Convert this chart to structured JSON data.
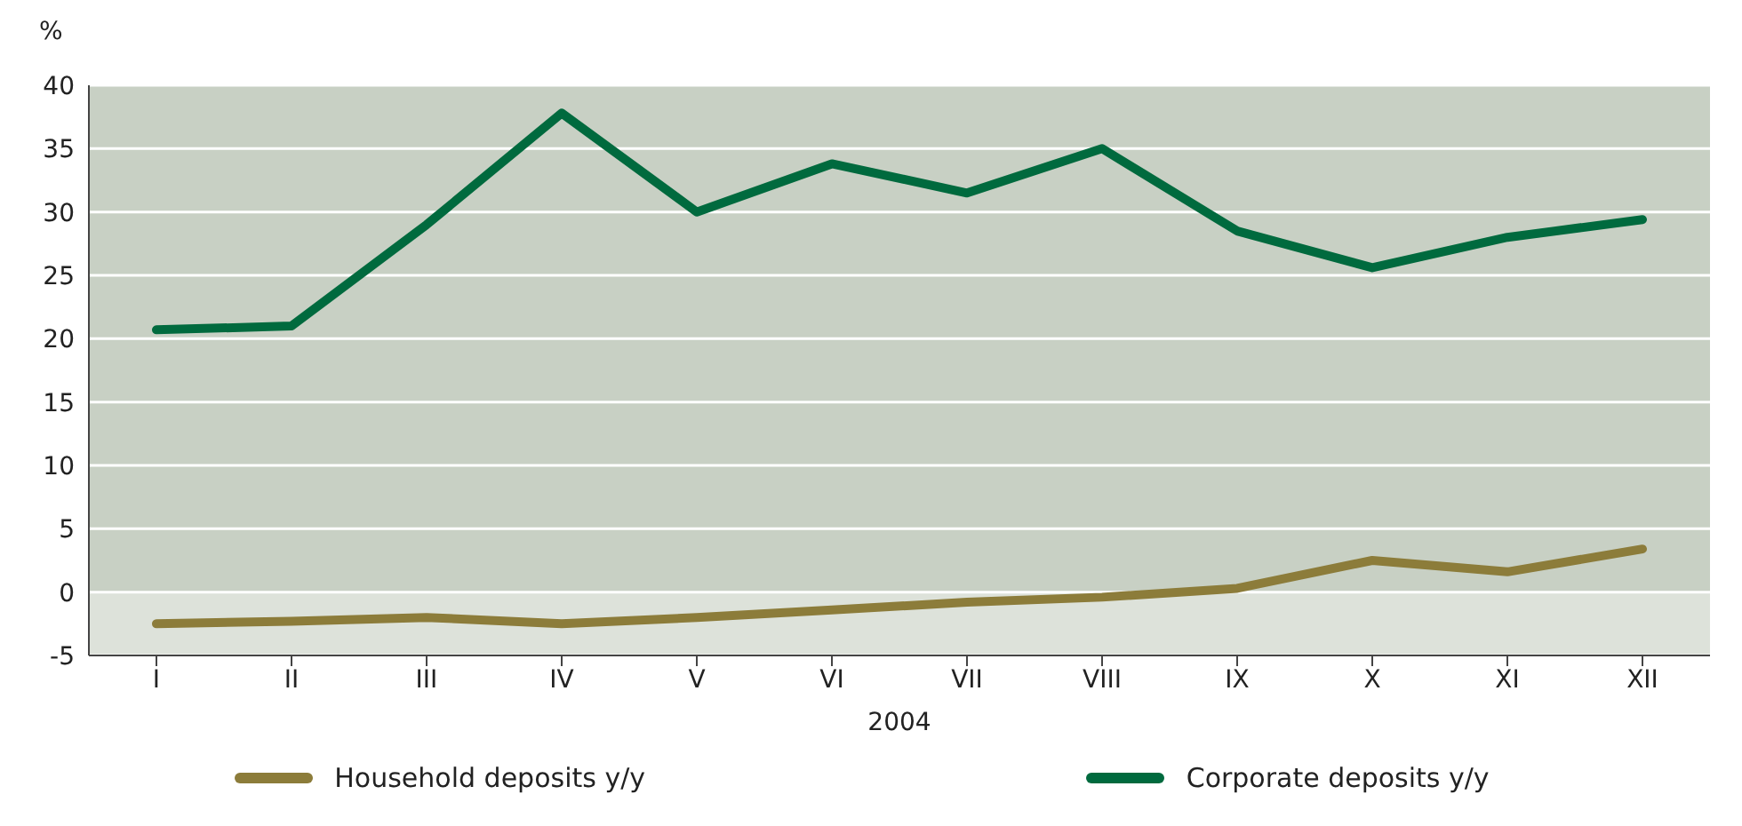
{
  "chart_data": {
    "type": "line",
    "ylabel": "%",
    "xlabel": "2004",
    "categories": [
      "I",
      "II",
      "III",
      "IV",
      "V",
      "VI",
      "VII",
      "VIII",
      "IX",
      "X",
      "XI",
      "XII"
    ],
    "series": [
      {
        "name": "Household deposits y/y",
        "color": "#8c7c3a",
        "values": [
          -2.5,
          -2.3,
          -2.0,
          -2.5,
          -2.0,
          -1.4,
          -0.8,
          -0.4,
          0.3,
          2.5,
          1.6,
          3.4
        ]
      },
      {
        "name": "Corporate deposits y/y",
        "color": "#006a3e",
        "values": [
          20.7,
          21.0,
          29.0,
          37.8,
          30.0,
          33.8,
          31.5,
          35.0,
          28.5,
          25.6,
          28.0,
          29.4
        ]
      }
    ],
    "ylim": [
      -5,
      40
    ],
    "yticks": [
      -5,
      0,
      5,
      10,
      15,
      20,
      25,
      30,
      35,
      40
    ],
    "bands": [
      {
        "axis": "y",
        "from": -5,
        "to": 0,
        "color": "#dde2da"
      },
      {
        "axis": "y",
        "from": 0,
        "to": 40,
        "color": "#c8d0c4"
      }
    ],
    "grid": "y",
    "legend": "bottom",
    "marker": "none",
    "line_style": "solid"
  }
}
